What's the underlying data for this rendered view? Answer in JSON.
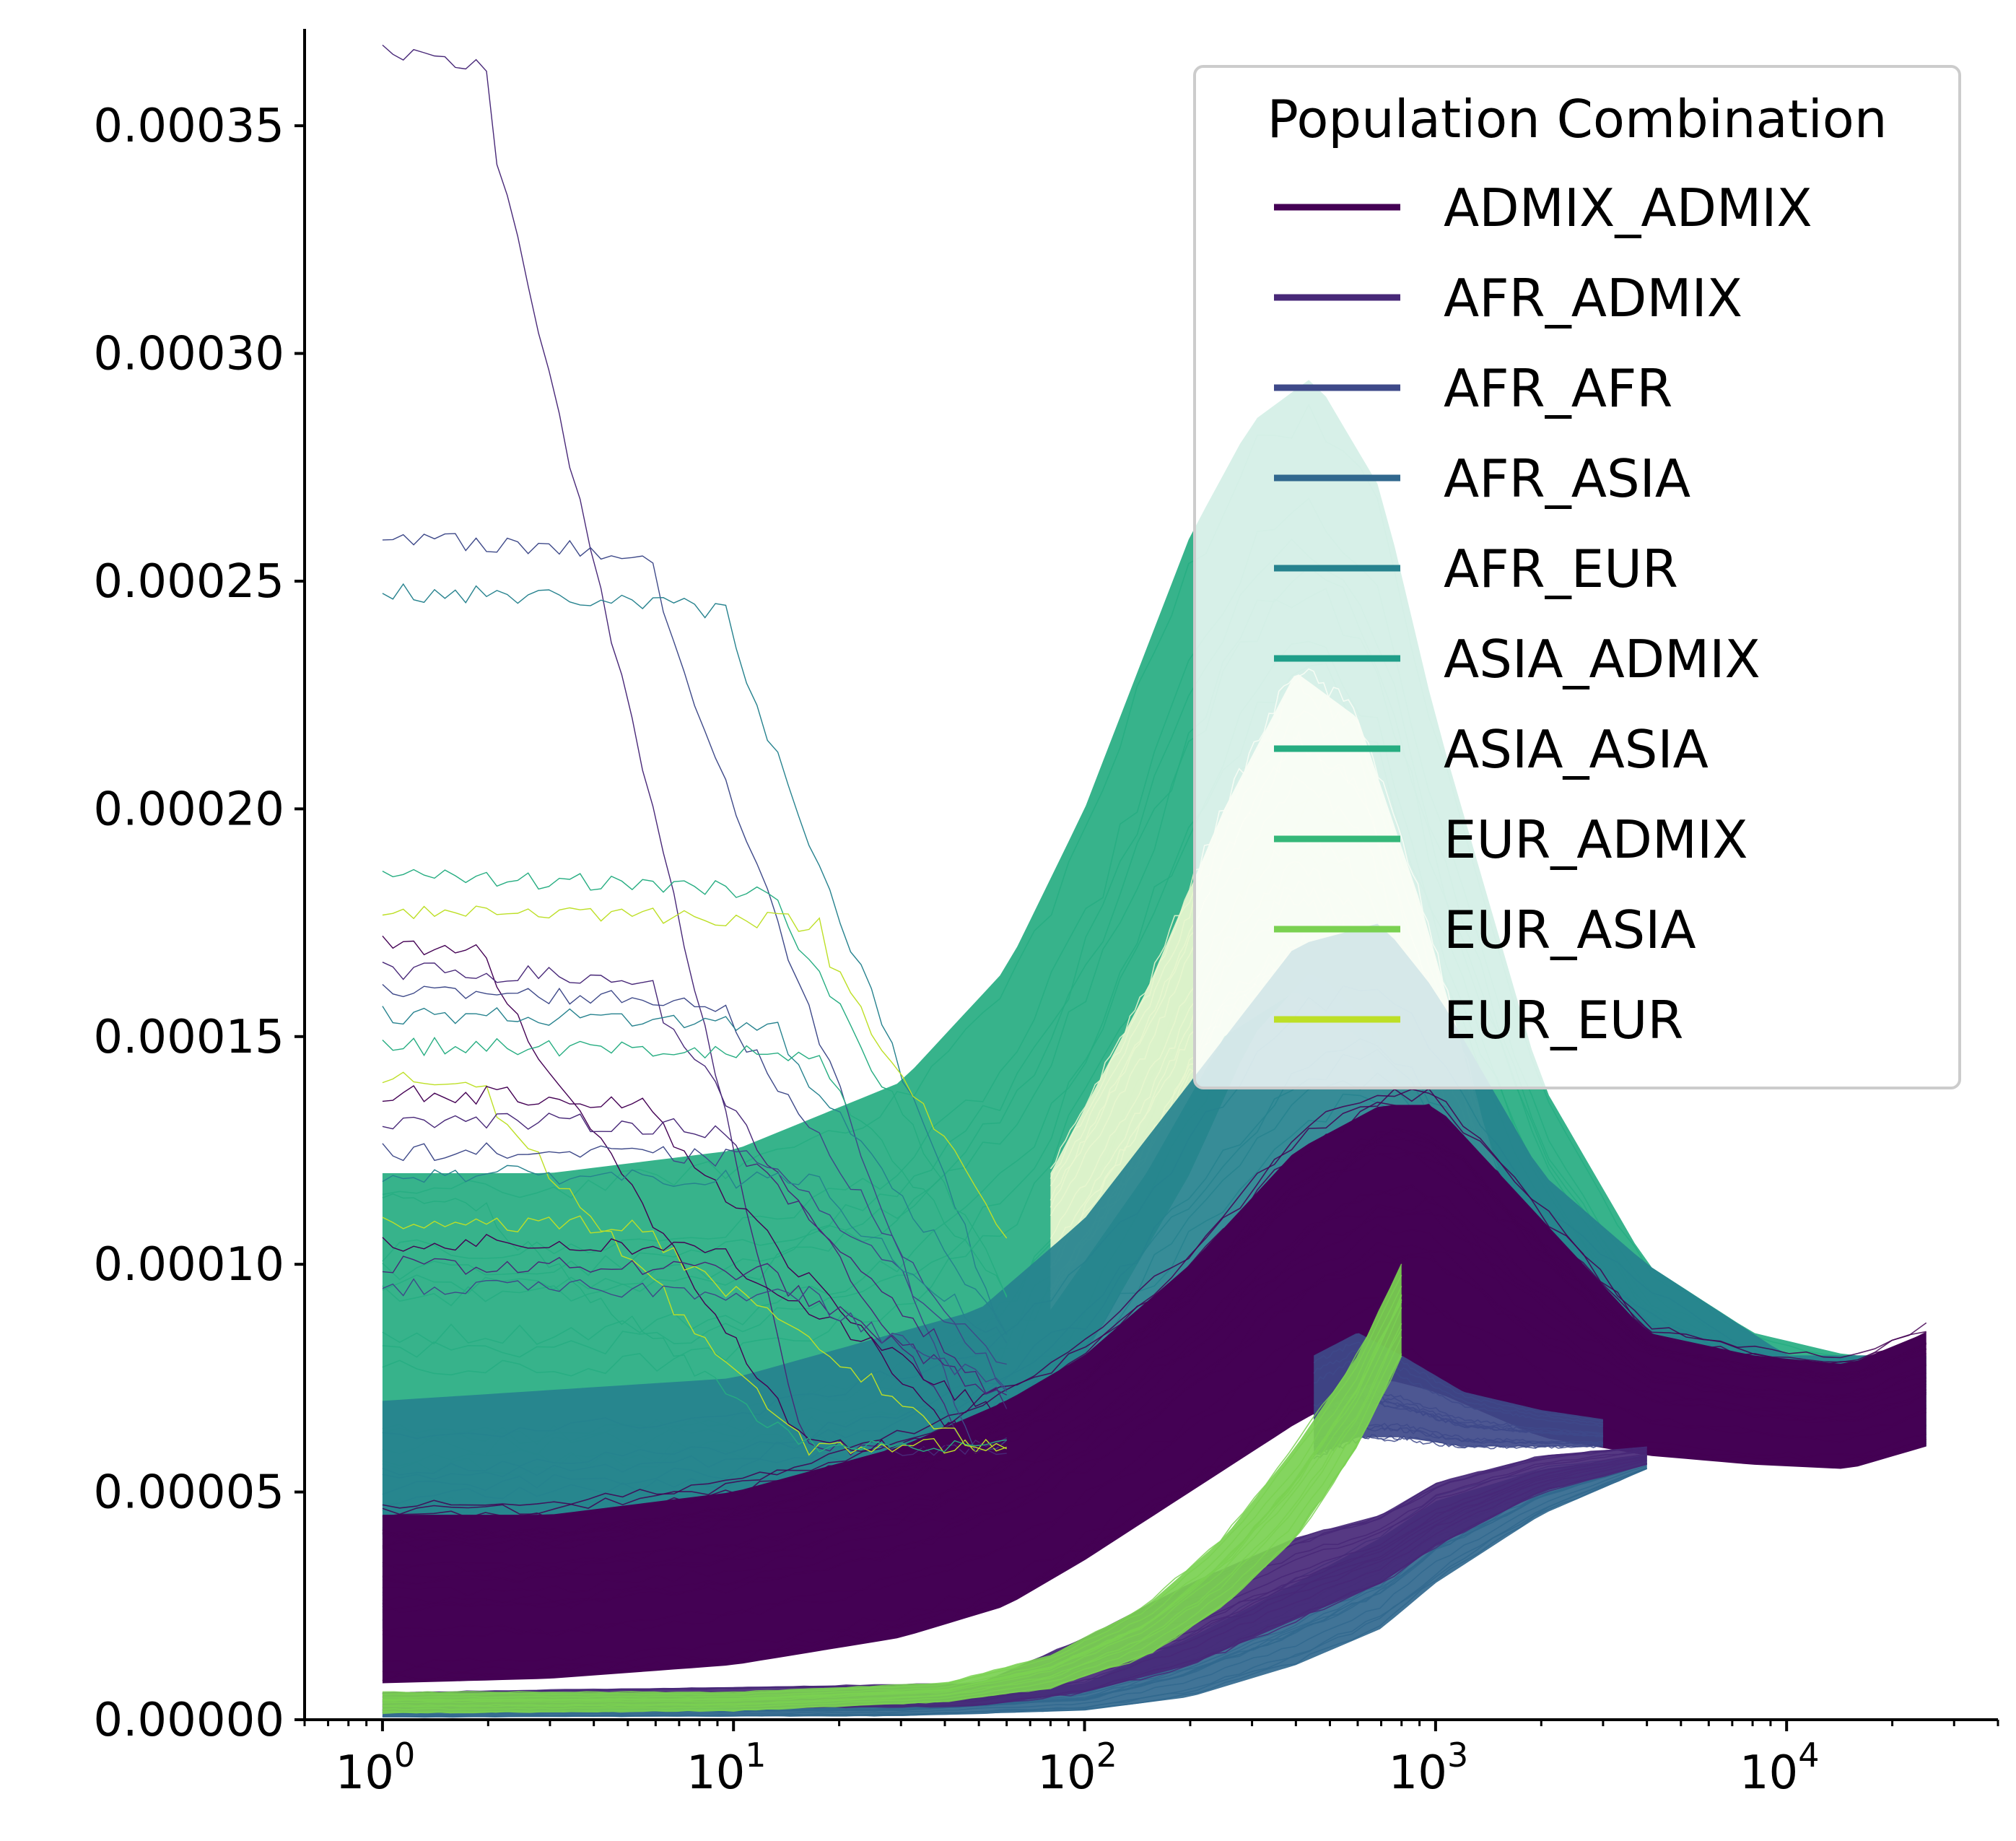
{
  "chart_data": {
    "type": "line",
    "title": "",
    "xlabel": "",
    "ylabel": "",
    "x_scale": "log",
    "xlim": [
      0.6,
      40000
    ],
    "ylim": [
      0,
      0.00037
    ],
    "x_ticks": [
      {
        "value": 1,
        "base": "10",
        "exp": "0"
      },
      {
        "value": 10,
        "base": "10",
        "exp": "1"
      },
      {
        "value": 100,
        "base": "10",
        "exp": "2"
      },
      {
        "value": 1000,
        "base": "10",
        "exp": "3"
      },
      {
        "value": 10000,
        "base": "10",
        "exp": "4"
      }
    ],
    "y_ticks": [
      {
        "value": 0,
        "label": "0.00000"
      },
      {
        "value": 5e-05,
        "label": "0.00005"
      },
      {
        "value": 0.0001,
        "label": "0.00010"
      },
      {
        "value": 0.00015,
        "label": "0.00015"
      },
      {
        "value": 0.0002,
        "label": "0.00020"
      },
      {
        "value": 0.00025,
        "label": "0.00025"
      },
      {
        "value": 0.0003,
        "label": "0.00030"
      },
      {
        "value": 0.00035,
        "label": "0.00035"
      }
    ],
    "legend": {
      "title": "Population Combination",
      "placement": "top-right",
      "entries": [
        {
          "name": "ADMIX_ADMIX",
          "color": "#440154"
        },
        {
          "name": "AFR_ADMIX",
          "color": "#482878"
        },
        {
          "name": "AFR_AFR",
          "color": "#3e4989"
        },
        {
          "name": "AFR_ASIA",
          "color": "#31688e"
        },
        {
          "name": "AFR_EUR",
          "color": "#26828e"
        },
        {
          "name": "ASIA_ADMIX",
          "color": "#1f9e89"
        },
        {
          "name": "ASIA_ASIA",
          "color": "#26ad81"
        },
        {
          "name": "EUR_ADMIX",
          "color": "#35b779"
        },
        {
          "name": "EUR_ASIA",
          "color": "#7ad151"
        },
        {
          "name": "EUR_EUR",
          "color": "#bddf26"
        }
      ]
    },
    "series": [
      {
        "name": "ASIA_ASIA",
        "color": "#26ad81",
        "band": "high",
        "x": [
          1,
          3,
          10,
          30,
          60,
          100,
          200,
          300,
          450,
          700,
          1000,
          2000,
          4000,
          8000,
          15000,
          25000
        ],
        "upper": [
          0.00012,
          0.00012,
          0.000125,
          0.00014,
          0.000165,
          0.0002,
          0.00026,
          0.000285,
          0.000295,
          0.00027,
          0.00022,
          0.00014,
          0.0001,
          8.5e-05,
          8e-05,
          8e-05
        ],
        "lower": [
          4e-05,
          4e-05,
          4.2e-05,
          5e-05,
          6e-05,
          8e-05,
          0.00012,
          0.00015,
          0.000165,
          0.00015,
          0.00012,
          9e-05,
          7e-05,
          6.2e-05,
          5.8e-05,
          6e-05
        ]
      },
      {
        "name": "EUR_EUR",
        "color": "#e9f7cf",
        "band": "high",
        "x": [
          80,
          150,
          250,
          400,
          600,
          900,
          1500
        ],
        "upper": [
          0.00012,
          0.00016,
          0.0002,
          0.00023,
          0.00022,
          0.00018,
          0.00012
        ],
        "lower": [
          9e-05,
          0.00012,
          0.00015,
          0.00016,
          0.00015,
          0.00012,
          9e-05
        ]
      },
      {
        "name": "AFR_EUR",
        "color": "#26828e",
        "band": "mid",
        "x": [
          1,
          10,
          50,
          100,
          200,
          400,
          700,
          1000,
          2000,
          4000,
          10000,
          25000
        ],
        "upper": [
          7e-05,
          7.5e-05,
          9e-05,
          0.00011,
          0.00014,
          0.00017,
          0.000175,
          0.00016,
          0.00012,
          0.0001,
          8e-05,
          8e-05
        ],
        "lower": [
          2e-05,
          2.2e-05,
          3e-05,
          4e-05,
          6e-05,
          8e-05,
          9e-05,
          8e-05,
          7e-05,
          6.5e-05,
          6.2e-05,
          6e-05
        ]
      },
      {
        "name": "ADMIX_ADMIX",
        "color": "#440154",
        "band": "core",
        "x": [
          1,
          3,
          10,
          30,
          60,
          100,
          200,
          400,
          700,
          1000,
          2000,
          4000,
          8000,
          15000,
          25000
        ],
        "upper": [
          4.5e-05,
          4.5e-05,
          5e-05,
          6e-05,
          7e-05,
          8e-05,
          0.0001,
          0.000125,
          0.000135,
          0.000135,
          0.00011,
          8.5e-05,
          8e-05,
          7.8e-05,
          8.5e-05
        ],
        "lower": [
          8e-06,
          9e-06,
          1.2e-05,
          1.8e-05,
          2.5e-05,
          3.5e-05,
          5e-05,
          6.5e-05,
          7.5e-05,
          7.2e-05,
          6.2e-05,
          5.8e-05,
          5.6e-05,
          5.5e-05,
          6e-05
        ]
      },
      {
        "name": "AFR_AFR",
        "color": "#3e4989",
        "band": "shoulder",
        "x": [
          450,
          600,
          800,
          1200,
          2000,
          3000
        ],
        "upper": [
          8e-05,
          8.5e-05,
          8e-05,
          7.2e-05,
          6.8e-05,
          6.6e-05
        ],
        "lower": [
          5.8e-05,
          6.2e-05,
          6.2e-05,
          6e-05,
          6e-05,
          6e-05
        ]
      },
      {
        "name": "AFR_ASIA",
        "color": "#31688e",
        "band": "low",
        "x": [
          1,
          30,
          100,
          200,
          400,
          700,
          1000,
          2000,
          4000
        ],
        "upper": [
          3e-06,
          4e-06,
          8e-06,
          1.8e-05,
          3e-05,
          4e-05,
          4.8e-05,
          5.5e-05,
          5.8e-05
        ],
        "lower": [
          5e-07,
          8e-07,
          2e-06,
          5e-06,
          1.2e-05,
          2e-05,
          3e-05,
          4.5e-05,
          5.5e-05
        ]
      },
      {
        "name": "AFR_ADMIX",
        "color": "#482878",
        "band": "low",
        "x": [
          1,
          50,
          100,
          200,
          400,
          700,
          1000,
          2000,
          4000
        ],
        "upper": [
          6e-06,
          8e-06,
          1.8e-05,
          3e-05,
          4e-05,
          4.5e-05,
          5.2e-05,
          5.8e-05,
          6e-05
        ],
        "lower": [
          2e-06,
          3e-06,
          6e-06,
          1.2e-05,
          2.2e-05,
          3e-05,
          3.8e-05,
          5e-05,
          5.6e-05
        ]
      },
      {
        "name": "EUR_ASIA",
        "color": "#7ad151",
        "band": "ramp",
        "x": [
          1,
          10,
          40,
          80,
          150,
          250,
          400,
          600,
          800
        ],
        "upper": [
          6e-06,
          6e-06,
          8e-06,
          1.4e-05,
          2.5e-05,
          4e-05,
          6e-05,
          8e-05,
          0.0001
        ],
        "lower": [
          1.5e-06,
          2e-06,
          4e-06,
          7e-06,
          1.4e-05,
          2.5e-05,
          4e-05,
          6e-05,
          8e-05
        ]
      }
    ]
  }
}
